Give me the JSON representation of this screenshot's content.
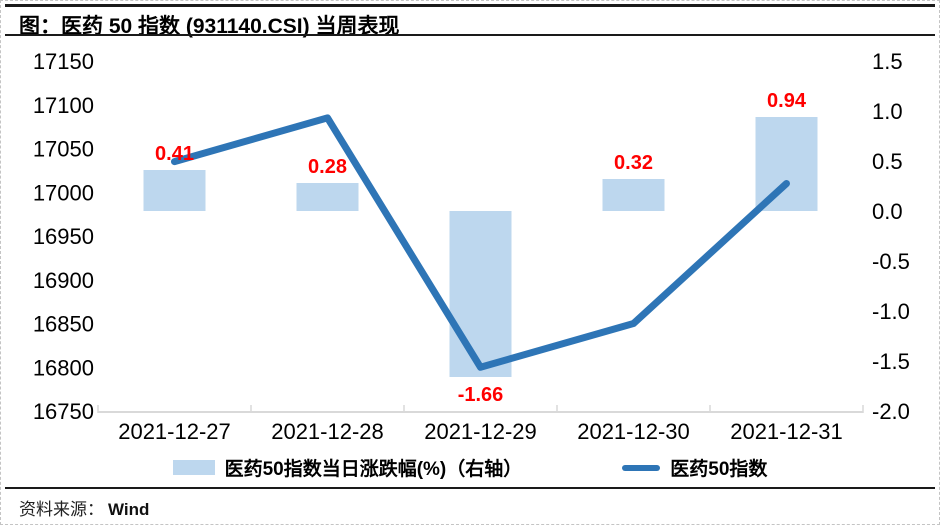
{
  "title": "图：医药 50 指数 (931140.CSI) 当周表现",
  "source": {
    "label": "资料来源：",
    "value": "Wind"
  },
  "legend": [
    {
      "type": "bar",
      "label": "医药50指数当日涨跌幅(%)（右轴）"
    },
    {
      "type": "line",
      "label": "医药50指数"
    }
  ],
  "chart_data": {
    "type": "combo-bar-line",
    "categories": [
      "2021-12-27",
      "2021-12-28",
      "2021-12-29",
      "2021-12-30",
      "2021-12-31"
    ],
    "series": [
      {
        "name": "医药50指数当日涨跌幅(%)（右轴）",
        "type": "bar",
        "axis": "right",
        "values": [
          0.41,
          0.28,
          -1.66,
          0.32,
          0.94
        ],
        "labels": [
          "0.41",
          "0.28",
          "-1.66",
          "0.32",
          "0.94"
        ],
        "color": "#BDD7EE",
        "label_color": "#FF0000"
      },
      {
        "name": "医药50指数",
        "type": "line",
        "axis": "left",
        "values": [
          17035,
          17085,
          16800,
          16850,
          17010
        ],
        "color": "#2E75B6"
      }
    ],
    "left_axis": {
      "min": 16750,
      "max": 17150,
      "ticks": [
        17150,
        17100,
        17050,
        17000,
        16950,
        16900,
        16850,
        16800,
        16750
      ]
    },
    "right_axis": {
      "min": -2.0,
      "max": 1.5,
      "ticks": [
        "1.5",
        "1.0",
        "0.5",
        "0.0",
        "-0.5",
        "-1.0",
        "-1.5",
        "-2.0"
      ]
    },
    "axis_color": "#D9D9D9",
    "grid": false,
    "legend_position": "bottom"
  }
}
